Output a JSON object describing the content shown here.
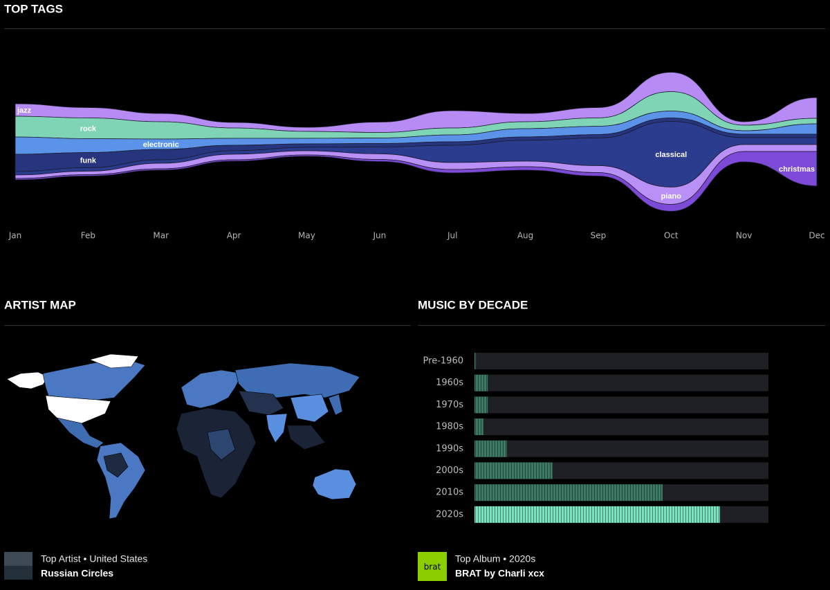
{
  "sections": {
    "top_tags": "TOP TAGS",
    "artist_map": "ARTIST MAP",
    "music_by_decade": "MUSIC BY DECADE"
  },
  "chart_data": [
    {
      "type": "streamgraph",
      "categories": [
        "Jan",
        "Feb",
        "Mar",
        "Apr",
        "May",
        "Jun",
        "Jul",
        "Aug",
        "Sep",
        "Oct",
        "Nov",
        "Dec"
      ],
      "series": [
        {
          "name": "jazz",
          "color": "#b68cf4",
          "values": [
            18,
            15,
            12,
            8,
            6,
            15,
            25,
            12,
            15,
            28,
            5,
            30
          ]
        },
        {
          "name": "rock",
          "color": "#7fd4b6",
          "values": [
            30,
            30,
            25,
            15,
            10,
            8,
            10,
            10,
            12,
            28,
            8,
            8
          ]
        },
        {
          "name": "electronic",
          "color": "#5a93e8",
          "values": [
            25,
            20,
            15,
            10,
            8,
            8,
            10,
            12,
            12,
            10,
            5,
            15
          ]
        },
        {
          "name": "funk",
          "color": "#27357f",
          "values": [
            25,
            22,
            15,
            8,
            5,
            5,
            5,
            5,
            5,
            5,
            5,
            5
          ]
        },
        {
          "name": "classical",
          "color": "#2b3b8e",
          "values": [
            5,
            5,
            5,
            5,
            5,
            10,
            25,
            30,
            40,
            95,
            10,
            10
          ]
        },
        {
          "name": "piano",
          "color": "#b890f6",
          "values": [
            5,
            5,
            8,
            8,
            6,
            8,
            10,
            8,
            10,
            25,
            10,
            10
          ]
        },
        {
          "name": "christmas",
          "color": "#7c4ad6",
          "values": [
            2,
            2,
            2,
            2,
            2,
            3,
            5,
            5,
            5,
            10,
            15,
            50
          ]
        }
      ]
    },
    {
      "type": "bar",
      "categories": [
        "Pre-1960",
        "1960s",
        "1970s",
        "1980s",
        "1990s",
        "2000s",
        "2010s",
        "2020s"
      ],
      "values": [
        0.5,
        4.5,
        4.5,
        3,
        11,
        26.5,
        64,
        83.5
      ],
      "colors": [
        "#3d7a66",
        "#3d7a66",
        "#3d7a66",
        "#3d7a66",
        "#3d7a66",
        "#3d7a66",
        "#3d7a66",
        "#7be3c0"
      ],
      "xlim": [
        0,
        100
      ]
    }
  ],
  "top_artist": {
    "label": "Top Artist • United States",
    "name": "Russian Circles"
  },
  "top_album": {
    "label": "Top Album • 2020s",
    "name": "BRAT by Charli xcx",
    "cover_text": "brat"
  }
}
